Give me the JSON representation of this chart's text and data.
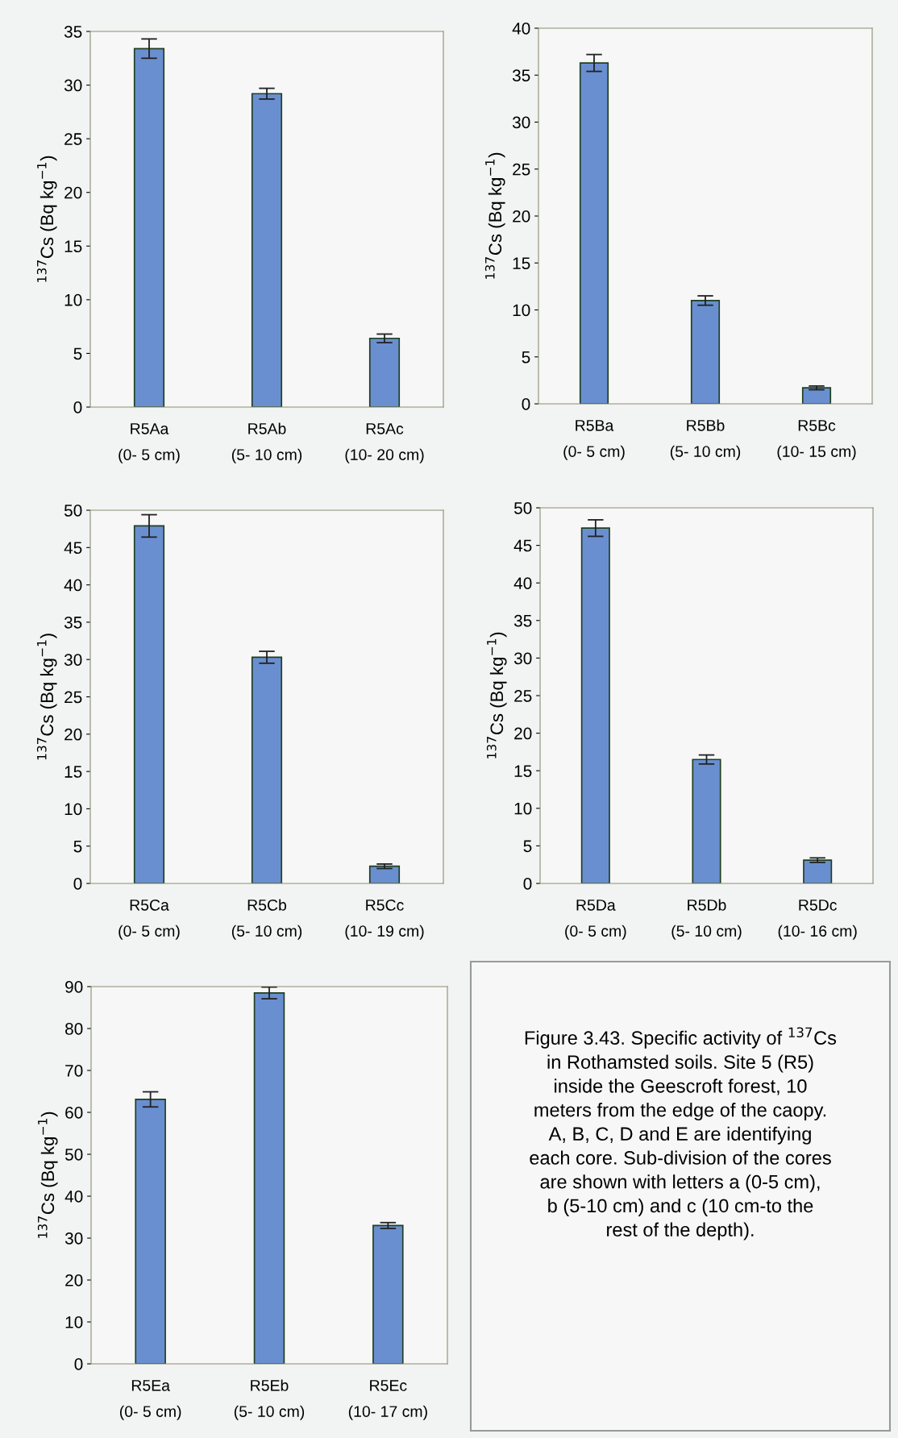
{
  "chart_data": [
    {
      "type": "bar",
      "ylabel": "$^{137}$Cs (Bq kg$^{−1}$)",
      "categories": [
        "R5Aa\n(0- 5 cm)",
        "R5Ab\n(5- 10 cm)",
        "R5Ac\n(10- 20 cm)"
      ],
      "values": [
        33.4,
        29.2,
        6.4
      ],
      "errors": [
        0.9,
        0.5,
        0.4
      ],
      "color": "#6a8fd0",
      "ylim": [
        0,
        35
      ],
      "yticks": [
        0,
        5,
        10,
        15,
        20,
        25,
        30,
        35
      ],
      "grid": false
    },
    {
      "type": "bar",
      "ylabel": "$^{137}$Cs (Bq kg$^{−1}$)",
      "categories": [
        "R5Ba\n(0- 5 cm)",
        "R5Bb\n(5- 10 cm)",
        "R5Bc\n(10- 15 cm)"
      ],
      "values": [
        36.3,
        11.0,
        1.7
      ],
      "errors": [
        0.9,
        0.5,
        0.2
      ],
      "color": "#6a8fd0",
      "ylim": [
        0,
        40
      ],
      "yticks": [
        0,
        5,
        10,
        15,
        20,
        25,
        30,
        35,
        40
      ],
      "grid": false
    },
    {
      "type": "bar",
      "ylabel": "$^{137}$Cs (Bq kg$^{−1}$)",
      "categories": [
        "R5Ca\n(0- 5 cm)",
        "R5Cb\n(5- 10 cm)",
        "R5Cc\n(10- 19 cm)"
      ],
      "values": [
        47.9,
        30.3,
        2.3
      ],
      "errors": [
        1.5,
        0.8,
        0.3
      ],
      "color": "#6a8fd0",
      "ylim": [
        0,
        50
      ],
      "yticks": [
        0,
        5,
        10,
        15,
        20,
        25,
        30,
        35,
        40,
        45,
        50
      ],
      "grid": false
    },
    {
      "type": "bar",
      "ylabel": "$^{137}$Cs (Bq kg$^{−1}$)",
      "categories": [
        "R5Da\n(0- 5 cm)",
        "R5Db\n(5- 10 cm)",
        "R5Dc\n(10- 16 cm)"
      ],
      "values": [
        47.3,
        16.5,
        3.1
      ],
      "errors": [
        1.1,
        0.6,
        0.3
      ],
      "color": "#6a8fd0",
      "ylim": [
        0,
        50
      ],
      "yticks": [
        0,
        5,
        10,
        15,
        20,
        25,
        30,
        35,
        40,
        45,
        50
      ],
      "grid": false
    },
    {
      "type": "bar",
      "ylabel": "$^{137}$Cs (Bq kg$^{−1}$)",
      "categories": [
        "R5Ea\n(0- 5 cm)",
        "R5Eb\n(5- 10 cm)",
        "R5Ec\n(10- 17 cm)"
      ],
      "values": [
        63.1,
        88.5,
        33.0
      ],
      "errors": [
        1.8,
        1.4,
        0.7
      ],
      "color": "#6a8fd0",
      "ylim": [
        0,
        90
      ],
      "yticks": [
        0,
        10,
        20,
        30,
        40,
        50,
        60,
        70,
        80,
        90
      ],
      "grid": false
    },
    {
      "type": "other",
      "annotations": [
        "Figure 3.43. Specific activity of $^{137}$Cs\nin Rothamsted soils. Site 5 (R5)\ninside the Geescroft forest, 10\nmeters from the edge of the caopy.\nA, B, C, D and E are identifying\neach core. Sub-division of the cores\nare shown with letters a (0-5 cm),\nb (5-10 cm) and c (10 cm-to the\nrest of the depth)."
      ]
    }
  ]
}
